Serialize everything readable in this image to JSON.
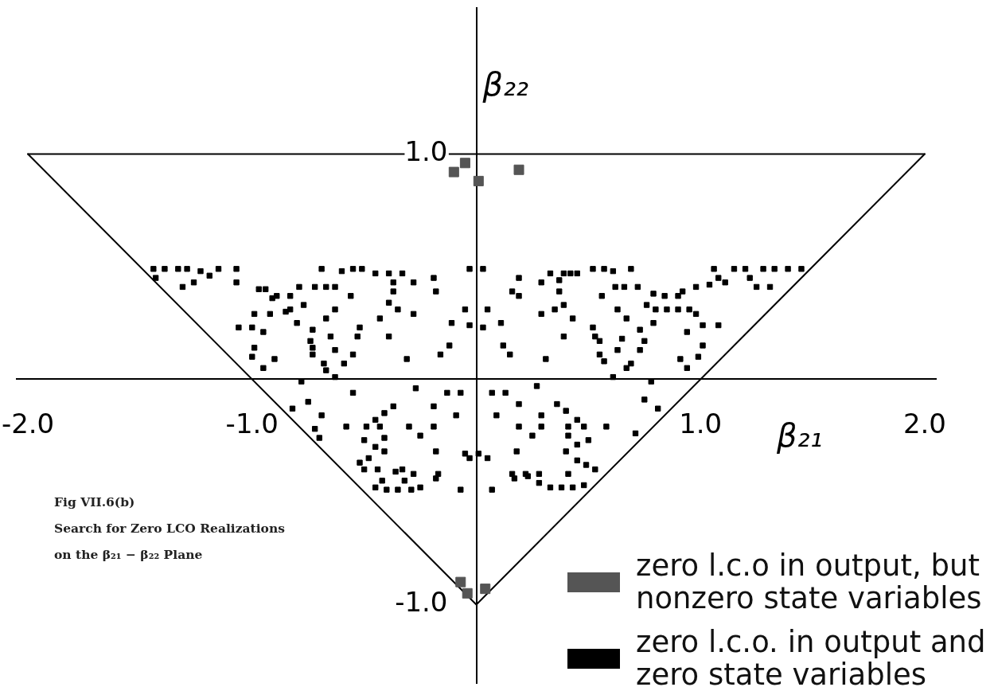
{
  "chart_data": {
    "type": "scatter",
    "xlabel": "β₂₁",
    "ylabel": "β₂₂",
    "annotations": [
      "Fig VII.6(b)",
      "Search for Zero LCO Realizations",
      "on the β₂₁ − β₂₂ Plane"
    ],
    "xlim": [
      -2.05,
      2.05
    ],
    "ylim": [
      -1.35,
      1.65
    ],
    "xticks": [
      {
        "value": -2,
        "label": "-2.0"
      },
      {
        "value": -1,
        "label": "-1.0"
      },
      {
        "value": 1,
        "label": "1.0"
      },
      {
        "value": 2,
        "label": "2.0"
      }
    ],
    "yticks": [
      {
        "value": -1,
        "label": "-1.0"
      },
      {
        "value": 1,
        "label": "1.0"
      }
    ],
    "marker": "square",
    "legend": "bottom right",
    "series": [
      {
        "name": "zero l.c.o in output, but nonzero state variables",
        "color": "#555555",
        "x": [
          -0.1,
          -0.05,
          0.01,
          0.19,
          -0.07,
          -0.04,
          0.04
        ],
        "values": [
          0.92,
          0.96,
          0.88,
          0.93,
          -0.9,
          -0.95,
          -0.93
        ]
      },
      {
        "name": "zero l.c.o. in output and zero state variables",
        "color": "#000000",
        "x": [
          -1.44,
          -1.43,
          -1.39,
          -1.33,
          -1.29,
          -1.23,
          -1.19,
          -1.15,
          -1.07,
          -1.07,
          -0.69,
          -0.6,
          -0.55,
          -0.51,
          -0.45,
          -0.39,
          -0.33,
          -0.19,
          -0.03,
          -1.31,
          -1.26,
          -0.97,
          -0.94,
          -0.91,
          -0.89,
          -0.83,
          -0.79,
          -0.72,
          -0.67,
          -0.63,
          -0.37,
          -0.28,
          -0.37,
          -0.18,
          -0.56,
          -0.99,
          -0.92,
          -0.85,
          -0.83,
          -0.77,
          -0.63,
          -0.39,
          -0.35,
          -0.28,
          -0.05,
          -1.06,
          -1.0,
          -0.95,
          -0.8,
          -0.73,
          -0.67,
          -0.52,
          -0.43,
          -0.11,
          -0.03,
          -0.99,
          -0.74,
          -0.73,
          -0.65,
          -0.63,
          -0.53,
          -0.39,
          -0.12,
          -1.0,
          -0.9,
          -0.95,
          -0.73,
          -0.68,
          -0.67,
          -0.63,
          -0.59,
          -0.55,
          -0.31,
          -0.16,
          0.03,
          0.19,
          0.33,
          0.39,
          0.42,
          0.45,
          0.52,
          0.57,
          0.61,
          0.69,
          1.06,
          1.08,
          1.11,
          1.15,
          1.2,
          1.22,
          1.28,
          1.33,
          1.39,
          1.45,
          1.25,
          1.31,
          0.29,
          0.37,
          0.16,
          0.19,
          0.37,
          0.56,
          0.62,
          0.66,
          0.72,
          0.79,
          0.84,
          0.9,
          0.92,
          0.98,
          1.04,
          0.05,
          0.29,
          0.35,
          0.39,
          0.43,
          0.63,
          0.67,
          0.76,
          0.8,
          0.85,
          0.9,
          0.95,
          0.98,
          0.03,
          0.11,
          0.52,
          0.73,
          0.79,
          0.94,
          1.01,
          1.08,
          0.39,
          0.53,
          0.55,
          0.65,
          0.75,
          0.73,
          0.12,
          0.15,
          0.31,
          0.55,
          0.57,
          0.63,
          0.69,
          0.67,
          0.61,
          0.91,
          0.94,
          1.01,
          0.99,
          -0.78,
          -0.55,
          -0.27,
          -0.13,
          -0.07,
          -0.75,
          -0.82,
          -0.69,
          -0.45,
          -0.41,
          -0.37,
          -0.19,
          -0.09,
          -0.72,
          -0.7,
          -0.58,
          -0.49,
          -0.43,
          -0.41,
          -0.3,
          -0.25,
          -0.19,
          -0.5,
          -0.45,
          -0.41,
          -0.18,
          -0.05,
          -0.03,
          -0.52,
          -0.48,
          -0.44,
          -0.5,
          -0.28,
          -0.17,
          -0.36,
          -0.33,
          0.78,
          0.07,
          0.13,
          0.27,
          0.19,
          0.09,
          0.29,
          0.36,
          0.4,
          0.45,
          0.75,
          0.81,
          0.19,
          0.25,
          0.29,
          0.41,
          0.41,
          0.48,
          0.58,
          0.71,
          0.01,
          0.05,
          0.18,
          0.4,
          0.45,
          0.5,
          0.45,
          0.49,
          0.53,
          0.16,
          0.22,
          0.28,
          0.41,
          -0.18,
          0.17,
          -0.07,
          0.07,
          0.23,
          0.28,
          0.33,
          0.38,
          0.43,
          0.48,
          -0.45,
          -0.4,
          -0.35,
          -0.29,
          -0.25,
          -0.42,
          -0.32
        ],
        "values": [
          0.49,
          0.45,
          0.49,
          0.49,
          0.49,
          0.48,
          0.46,
          0.49,
          0.49,
          0.43,
          0.49,
          0.48,
          0.49,
          0.49,
          0.47,
          0.47,
          0.47,
          0.45,
          0.49,
          0.41,
          0.43,
          0.4,
          0.4,
          0.36,
          0.37,
          0.37,
          0.41,
          0.41,
          0.41,
          0.41,
          0.43,
          0.43,
          0.39,
          0.39,
          0.37,
          0.29,
          0.29,
          0.3,
          0.31,
          0.33,
          0.31,
          0.34,
          0.31,
          0.29,
          0.31,
          0.23,
          0.23,
          0.21,
          0.25,
          0.22,
          0.27,
          0.23,
          0.27,
          0.25,
          0.24,
          0.14,
          0.17,
          0.14,
          0.19,
          0.13,
          0.19,
          0.19,
          0.15,
          0.1,
          0.09,
          0.05,
          0.11,
          0.07,
          0.04,
          0.01,
          0.07,
          0.11,
          0.09,
          0.11,
          0.49,
          0.45,
          0.47,
          0.47,
          0.47,
          0.47,
          0.49,
          0.49,
          0.48,
          0.49,
          0.49,
          0.45,
          0.43,
          0.49,
          0.49,
          0.45,
          0.49,
          0.49,
          0.49,
          0.49,
          0.41,
          0.41,
          0.43,
          0.44,
          0.39,
          0.37,
          0.39,
          0.37,
          0.41,
          0.41,
          0.41,
          0.38,
          0.37,
          0.37,
          0.39,
          0.41,
          0.42,
          0.31,
          0.29,
          0.31,
          0.33,
          0.27,
          0.31,
          0.27,
          0.33,
          0.31,
          0.31,
          0.31,
          0.31,
          0.29,
          0.23,
          0.25,
          0.23,
          0.22,
          0.25,
          0.21,
          0.24,
          0.24,
          0.19,
          0.19,
          0.17,
          0.18,
          0.17,
          0.13,
          0.15,
          0.11,
          0.09,
          0.11,
          0.08,
          0.13,
          0.07,
          0.05,
          0.01,
          0.09,
          0.05,
          0.15,
          0.1,
          -0.01,
          -0.06,
          -0.04,
          -0.06,
          -0.06,
          -0.1,
          -0.13,
          -0.16,
          -0.18,
          -0.15,
          -0.12,
          -0.12,
          -0.16,
          -0.22,
          -0.26,
          -0.21,
          -0.21,
          -0.21,
          -0.26,
          -0.21,
          -0.25,
          -0.21,
          -0.27,
          -0.3,
          -0.32,
          -0.32,
          -0.33,
          -0.35,
          -0.37,
          -0.35,
          -0.4,
          -0.4,
          -0.42,
          -0.42,
          -0.41,
          -0.4,
          -0.01,
          -0.06,
          -0.06,
          -0.03,
          -0.11,
          -0.16,
          -0.16,
          -0.11,
          -0.14,
          -0.18,
          -0.09,
          -0.13,
          -0.21,
          -0.25,
          -0.21,
          -0.21,
          -0.25,
          -0.21,
          -0.21,
          -0.24,
          -0.33,
          -0.35,
          -0.32,
          -0.32,
          -0.29,
          -0.27,
          -0.36,
          -0.38,
          -0.4,
          -0.42,
          -0.42,
          -0.42,
          -0.42,
          -0.44,
          -0.44,
          -0.49,
          -0.49,
          -0.43,
          -0.46,
          -0.48,
          -0.48,
          -0.48,
          -0.47,
          -0.48,
          -0.49,
          -0.49,
          -0.49,
          -0.48,
          -0.45,
          -0.45
        ]
      },
      {
        "type": "line",
        "marker": "none",
        "color": "#000000",
        "x": [
          -2,
          0,
          2
        ],
        "values": [
          1,
          -1,
          1
        ]
      },
      {
        "type": "line",
        "marker": "none",
        "color": "#000000",
        "x": [
          -2,
          2
        ],
        "values": [
          1,
          1
        ]
      }
    ]
  }
}
